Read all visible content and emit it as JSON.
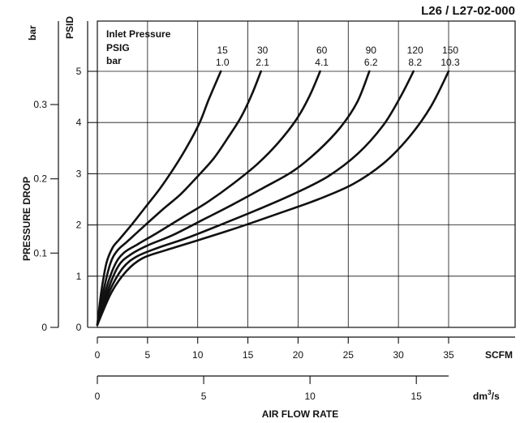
{
  "chart_data": {
    "type": "line",
    "title": "L26 / L27-02-000",
    "xlabel": "AIR FLOW RATE",
    "x_unit": "SCFM",
    "x2_unit": "dm3/s",
    "ylabel": "PRESSURE DROP",
    "y_unit": "PSID",
    "y2_unit": "bar",
    "xlim": [
      0,
      35
    ],
    "ylim": [
      0,
      5
    ],
    "x_ticks": [
      "0",
      "5",
      "10",
      "15",
      "20",
      "25",
      "30",
      "35"
    ],
    "x2_ticks": [
      "0",
      "5",
      "10",
      "15"
    ],
    "y_ticks": [
      "0",
      "1",
      "2",
      "3",
      "4",
      "5"
    ],
    "y2_ticks": [
      "0",
      "0.1",
      "0.2",
      "0.3"
    ],
    "grid": true,
    "legend": {
      "heading": "Inlet Pressure",
      "row1_label": "PSIG",
      "row2_label": "bar",
      "psig": [
        "15",
        "30",
        "60",
        "90",
        "120",
        "150"
      ],
      "bar": [
        "1.0",
        "2.1",
        "4.1",
        "6.2",
        "8.2",
        "10.3"
      ]
    },
    "series": [
      {
        "x": [
          0,
          0.4,
          0.9,
          1.5,
          2.2,
          3.4,
          4.8,
          6.2,
          7.6,
          9.0,
          10.2,
          11.1,
          12.3
        ],
        "y": [
          0.05,
          0.7,
          1.25,
          1.55,
          1.72,
          2.0,
          2.35,
          2.7,
          3.1,
          3.55,
          4.0,
          4.45,
          5.0
        ]
      },
      {
        "x": [
          0,
          0.6,
          1.3,
          2.0,
          3.0,
          4.5,
          6.5,
          8.3,
          10.0,
          11.6,
          13.0,
          14.3,
          15.4,
          16.3
        ],
        "y": [
          0.05,
          0.7,
          1.25,
          1.5,
          1.68,
          1.95,
          2.3,
          2.6,
          2.95,
          3.3,
          3.7,
          4.1,
          4.55,
          5.0
        ]
      },
      {
        "x": [
          0,
          0.8,
          1.7,
          2.6,
          4.0,
          6.0,
          8.5,
          11.0,
          13.5,
          16.0,
          18.0,
          19.8,
          21.1,
          22.2
        ],
        "y": [
          0.05,
          0.7,
          1.2,
          1.45,
          1.62,
          1.85,
          2.15,
          2.45,
          2.8,
          3.2,
          3.6,
          4.05,
          4.5,
          5.0
        ]
      },
      {
        "x": [
          0,
          1.0,
          2.1,
          3.3,
          5.0,
          7.5,
          10.5,
          13.5,
          16.5,
          19.5,
          22.0,
          24.2,
          25.9,
          27.1
        ],
        "y": [
          0.05,
          0.7,
          1.2,
          1.42,
          1.6,
          1.8,
          2.1,
          2.4,
          2.72,
          3.05,
          3.45,
          3.9,
          4.4,
          5.0
        ]
      },
      {
        "x": [
          0,
          1.2,
          2.5,
          3.9,
          6.0,
          9.0,
          12.5,
          16.0,
          19.5,
          23.0,
          26.0,
          28.5,
          30.2,
          31.5
        ],
        "y": [
          0.05,
          0.7,
          1.15,
          1.38,
          1.55,
          1.75,
          2.02,
          2.3,
          2.6,
          2.95,
          3.4,
          3.95,
          4.5,
          5.0
        ]
      },
      {
        "x": [
          0,
          1.4,
          2.9,
          4.5,
          6.7,
          10.0,
          14.0,
          18.0,
          22.0,
          25.5,
          28.5,
          31.0,
          33.2,
          35.0
        ],
        "y": [
          0.05,
          0.68,
          1.1,
          1.35,
          1.5,
          1.7,
          1.95,
          2.22,
          2.5,
          2.8,
          3.2,
          3.7,
          4.3,
          5.0
        ]
      }
    ]
  }
}
